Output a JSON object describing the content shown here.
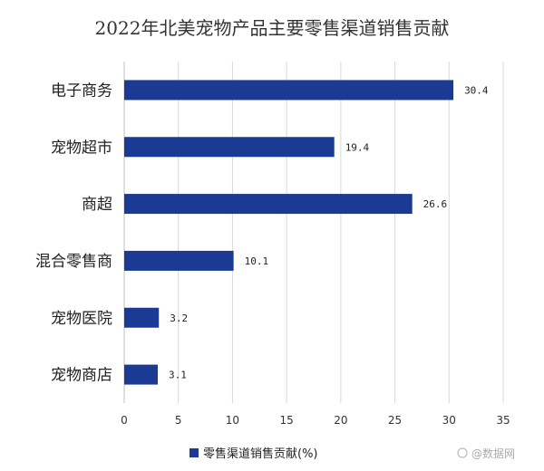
{
  "chart_data": {
    "type": "bar",
    "orientation": "horizontal",
    "title": "2022年北美宠物产品主要零售渠道销售贡献",
    "categories": [
      "电子商务",
      "宠物超市",
      "商超",
      "混合零售商",
      "宠物医院",
      "宠物商店"
    ],
    "series": [
      {
        "name": "零售渠道销售贡献(%)",
        "values": [
          30.4,
          19.4,
          26.6,
          10.1,
          3.2,
          3.1
        ],
        "value_labels": [
          "30.4",
          "19.4",
          "26.6",
          "10.1",
          "3.2",
          "3.1"
        ],
        "color": "#1a3a93"
      }
    ],
    "xlim": [
      0,
      35
    ],
    "xticks": [
      0,
      5,
      10,
      15,
      20,
      25,
      30,
      35
    ],
    "grid": true,
    "legend_position": "bottom"
  },
  "watermark": "@数据网"
}
